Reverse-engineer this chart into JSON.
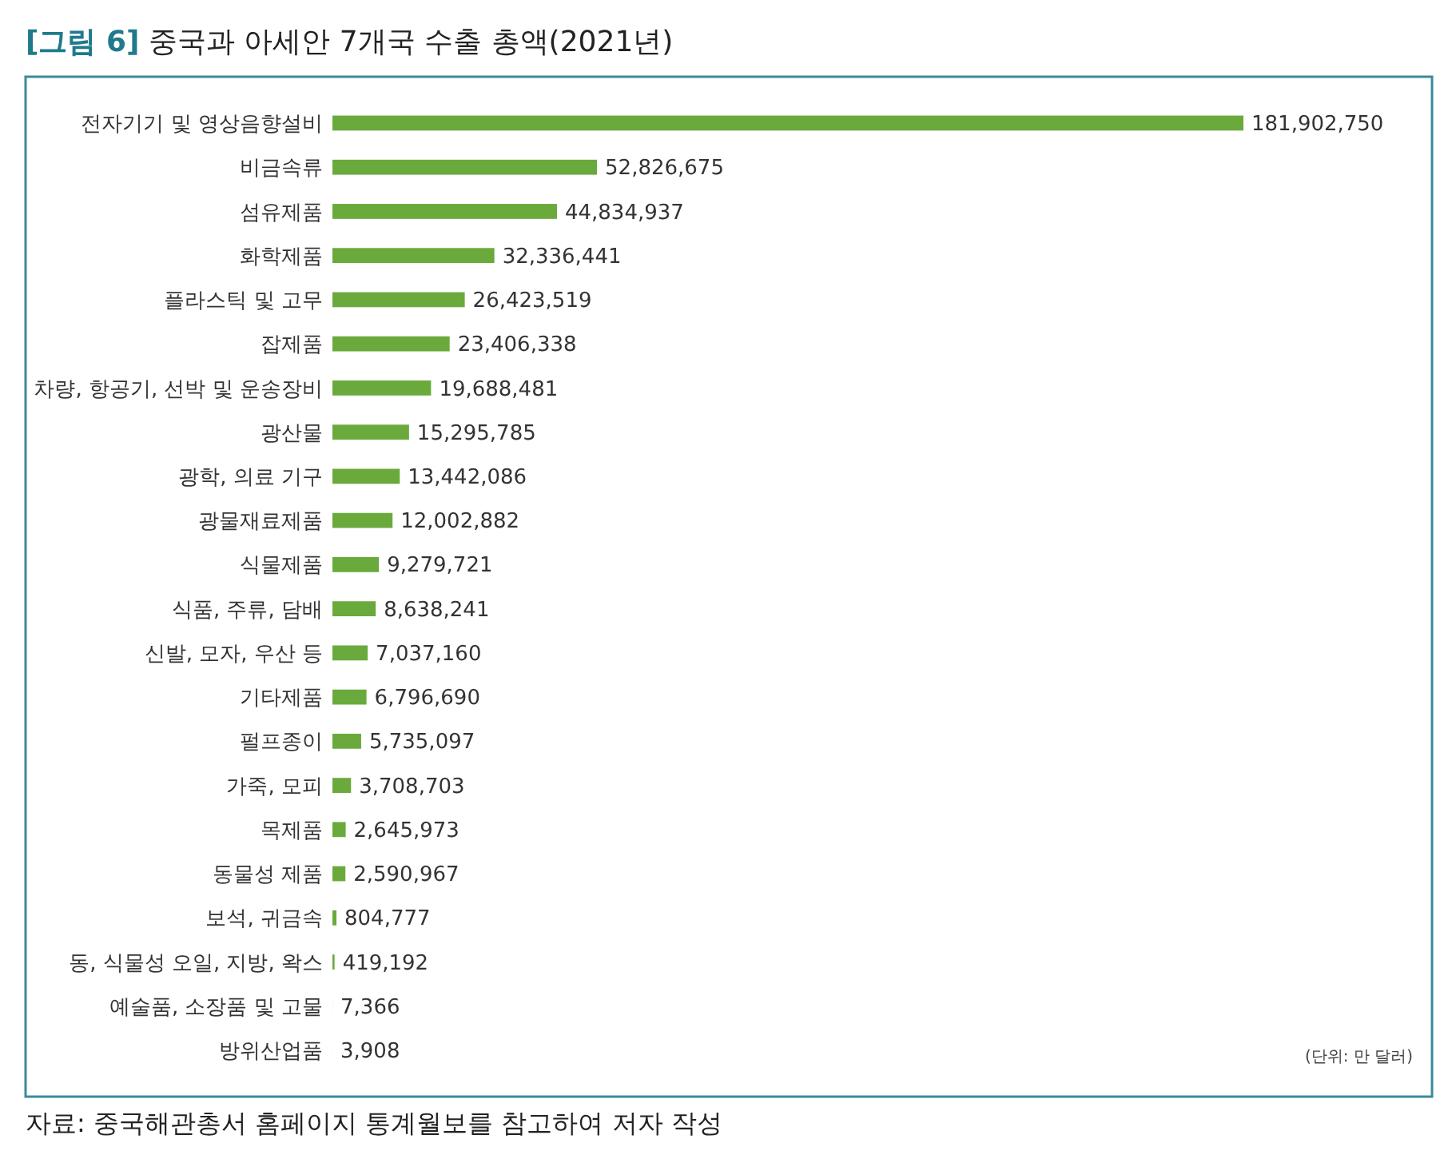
{
  "chart_data": {
    "type": "bar",
    "orientation": "horizontal",
    "title": "[그림 6] 중국과 아세안 7개국 수출 총액(2021년)",
    "categories": [
      "전자기기 및 영상음향설비",
      "비금속류",
      "섬유제품",
      "화학제품",
      "플라스틱 및 고무",
      "잡제품",
      "차량, 항공기, 선박 및 운송장비",
      "광산물",
      "광학, 의료 기구",
      "광물재료제품",
      "식물제품",
      "식품, 주류, 담배",
      "신발, 모자, 우산 등",
      "기타제품",
      "펄프종이",
      "가죽, 모피",
      "목제품",
      "동물성 제품",
      "보석, 귀금속",
      "동, 식물성 오일, 지방, 왁스",
      "예술품, 소장품 및 고물",
      "방위산업품"
    ],
    "values": [
      181902750,
      52826675,
      44834937,
      32336441,
      26423519,
      23406338,
      19688481,
      15295785,
      13442086,
      12002882,
      9279721,
      8638241,
      7037160,
      6796690,
      5735097,
      3708703,
      2645973,
      2590967,
      804777,
      419192,
      7366,
      3908
    ],
    "value_labels": [
      "181,902,750",
      "52,826,675",
      "44,834,937",
      "32,336,441",
      "26,423,519",
      "23,406,338",
      "19,688,481",
      "15,295,785",
      "13,442,086",
      "12,002,882",
      "9,279,721",
      "8,638,241",
      "7,037,160",
      "6,796,690",
      "5,735,097",
      "3,708,703",
      "2,645,973",
      "2,590,967",
      "804,777",
      "419,192",
      "7,366",
      "3,908"
    ],
    "color": "#6aaa3c",
    "annotations": [
      "(단위: 만 달러)",
      "자료: 중국해관총서 홈페이지 통계월보를 참고하여 저자 작성"
    ]
  }
}
